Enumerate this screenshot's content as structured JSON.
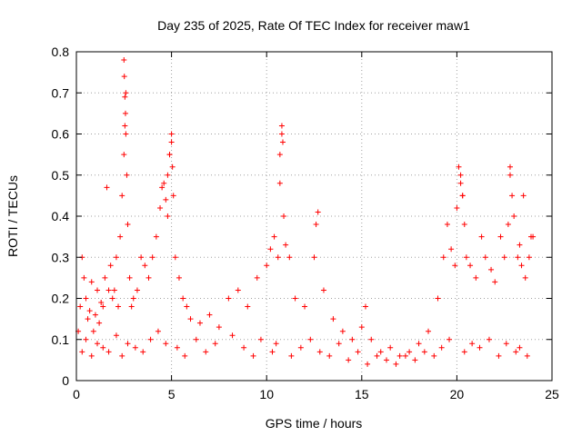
{
  "chart_data": {
    "type": "scatter",
    "title": "Day 235 of 2025, Rate Of TEC Index for receiver maw1",
    "xlabel": "GPS time / hours",
    "ylabel": "ROTI / TECUs",
    "xlim": [
      0,
      25
    ],
    "ylim": [
      0,
      0.8
    ],
    "x_ticks": [
      "0",
      "5",
      "10",
      "15",
      "20",
      "25"
    ],
    "y_ticks": [
      "0",
      "0.1",
      "0.2",
      "0.3",
      "0.4",
      "0.5",
      "0.6",
      "0.7",
      "0.8"
    ],
    "x_tick_values": [
      0,
      5,
      10,
      15,
      20,
      25
    ],
    "y_tick_values": [
      0,
      0.1,
      0.2,
      0.3,
      0.4,
      0.5,
      0.6,
      0.7,
      0.8
    ],
    "grid": true,
    "marker": "+",
    "color": "#ff0000",
    "series": [
      {
        "x": [
          0.1,
          0.2,
          0.3,
          0.4,
          0.5,
          0.6,
          0.7,
          0.8,
          0.9,
          1.0,
          1.1,
          1.2,
          1.3,
          1.4,
          1.5,
          1.6,
          1.7,
          1.8,
          1.9,
          2.0,
          2.1,
          2.2,
          2.3,
          2.4,
          2.5,
          2.55,
          2.6,
          2.65,
          2.7,
          2.8,
          2.9,
          3.0,
          3.2,
          3.4,
          3.6,
          3.8,
          4.0,
          4.2,
          4.4,
          4.5,
          4.6,
          4.7,
          4.8,
          4.9,
          5.0,
          5.1,
          5.2,
          5.4,
          5.6,
          5.8,
          6.0,
          6.5,
          7.0,
          7.5,
          8.0,
          8.5,
          9.0,
          9.5,
          10.0,
          10.2,
          10.4,
          10.6,
          10.7,
          10.8,
          10.9,
          11.0,
          11.2,
          11.5,
          12.0,
          12.5,
          12.7,
          13.0,
          13.5,
          14.0,
          14.5,
          15.0,
          15.2,
          15.5,
          16.0,
          16.5,
          17.0,
          17.5,
          18.0,
          18.5,
          19.0,
          19.3,
          19.5,
          19.7,
          19.9,
          20.0,
          20.1,
          20.2,
          20.3,
          20.4,
          20.5,
          20.7,
          21.0,
          21.3,
          21.5,
          21.8,
          22.0,
          22.3,
          22.5,
          22.7,
          22.8,
          22.9,
          23.0,
          23.2,
          23.4,
          23.5,
          23.6,
          23.8,
          24.0,
          0.3,
          0.5,
          0.8,
          1.1,
          1.4,
          1.7,
          2.1,
          2.4,
          2.7,
          3.1,
          3.5,
          3.9,
          4.3,
          4.7,
          5.3,
          5.7,
          6.3,
          6.8,
          7.3,
          8.2,
          8.8,
          9.3,
          9.7,
          10.3,
          10.5,
          11.3,
          11.8,
          12.3,
          12.8,
          13.3,
          13.8,
          14.3,
          14.8,
          15.3,
          15.8,
          16.3,
          16.8,
          17.3,
          17.8,
          18.3,
          18.8,
          19.2,
          19.6,
          20.4,
          20.8,
          21.2,
          21.7,
          22.2,
          22.6,
          23.1,
          23.3,
          23.7,
          2.5,
          2.52,
          2.55,
          2.58,
          2.6,
          4.8,
          4.9,
          5.0,
          5.05,
          10.7,
          10.8,
          10.85,
          12.6,
          20.2,
          20.3,
          22.8,
          23.3,
          23.9
        ],
        "y": [
          0.12,
          0.18,
          0.3,
          0.25,
          0.2,
          0.15,
          0.17,
          0.24,
          0.12,
          0.16,
          0.22,
          0.14,
          0.19,
          0.18,
          0.25,
          0.47,
          0.22,
          0.28,
          0.2,
          0.22,
          0.3,
          0.18,
          0.35,
          0.45,
          0.55,
          0.62,
          0.7,
          0.5,
          0.38,
          0.25,
          0.18,
          0.2,
          0.22,
          0.3,
          0.28,
          0.25,
          0.3,
          0.35,
          0.42,
          0.47,
          0.48,
          0.44,
          0.4,
          0.55,
          0.6,
          0.45,
          0.3,
          0.25,
          0.2,
          0.18,
          0.15,
          0.14,
          0.16,
          0.13,
          0.2,
          0.22,
          0.18,
          0.25,
          0.28,
          0.32,
          0.35,
          0.3,
          0.55,
          0.62,
          0.4,
          0.33,
          0.3,
          0.2,
          0.18,
          0.3,
          0.41,
          0.22,
          0.15,
          0.12,
          0.1,
          0.13,
          0.18,
          0.1,
          0.07,
          0.08,
          0.06,
          0.07,
          0.09,
          0.12,
          0.2,
          0.3,
          0.38,
          0.32,
          0.28,
          0.42,
          0.52,
          0.48,
          0.45,
          0.38,
          0.3,
          0.28,
          0.25,
          0.35,
          0.3,
          0.27,
          0.24,
          0.35,
          0.3,
          0.38,
          0.52,
          0.45,
          0.4,
          0.3,
          0.28,
          0.45,
          0.25,
          0.3,
          0.35,
          0.07,
          0.1,
          0.06,
          0.09,
          0.08,
          0.07,
          0.11,
          0.06,
          0.09,
          0.08,
          0.07,
          0.1,
          0.12,
          0.09,
          0.08,
          0.06,
          0.1,
          0.07,
          0.09,
          0.11,
          0.08,
          0.06,
          0.1,
          0.07,
          0.09,
          0.06,
          0.08,
          0.1,
          0.07,
          0.06,
          0.09,
          0.05,
          0.07,
          0.04,
          0.06,
          0.05,
          0.04,
          0.06,
          0.05,
          0.07,
          0.06,
          0.08,
          0.1,
          0.07,
          0.09,
          0.08,
          0.1,
          0.06,
          0.09,
          0.07,
          0.08,
          0.06,
          0.78,
          0.74,
          0.69,
          0.65,
          0.6,
          0.5,
          0.55,
          0.58,
          0.52,
          0.48,
          0.6,
          0.58,
          0.38,
          0.5,
          0.45,
          0.5,
          0.33,
          0.35
        ]
      }
    ]
  }
}
